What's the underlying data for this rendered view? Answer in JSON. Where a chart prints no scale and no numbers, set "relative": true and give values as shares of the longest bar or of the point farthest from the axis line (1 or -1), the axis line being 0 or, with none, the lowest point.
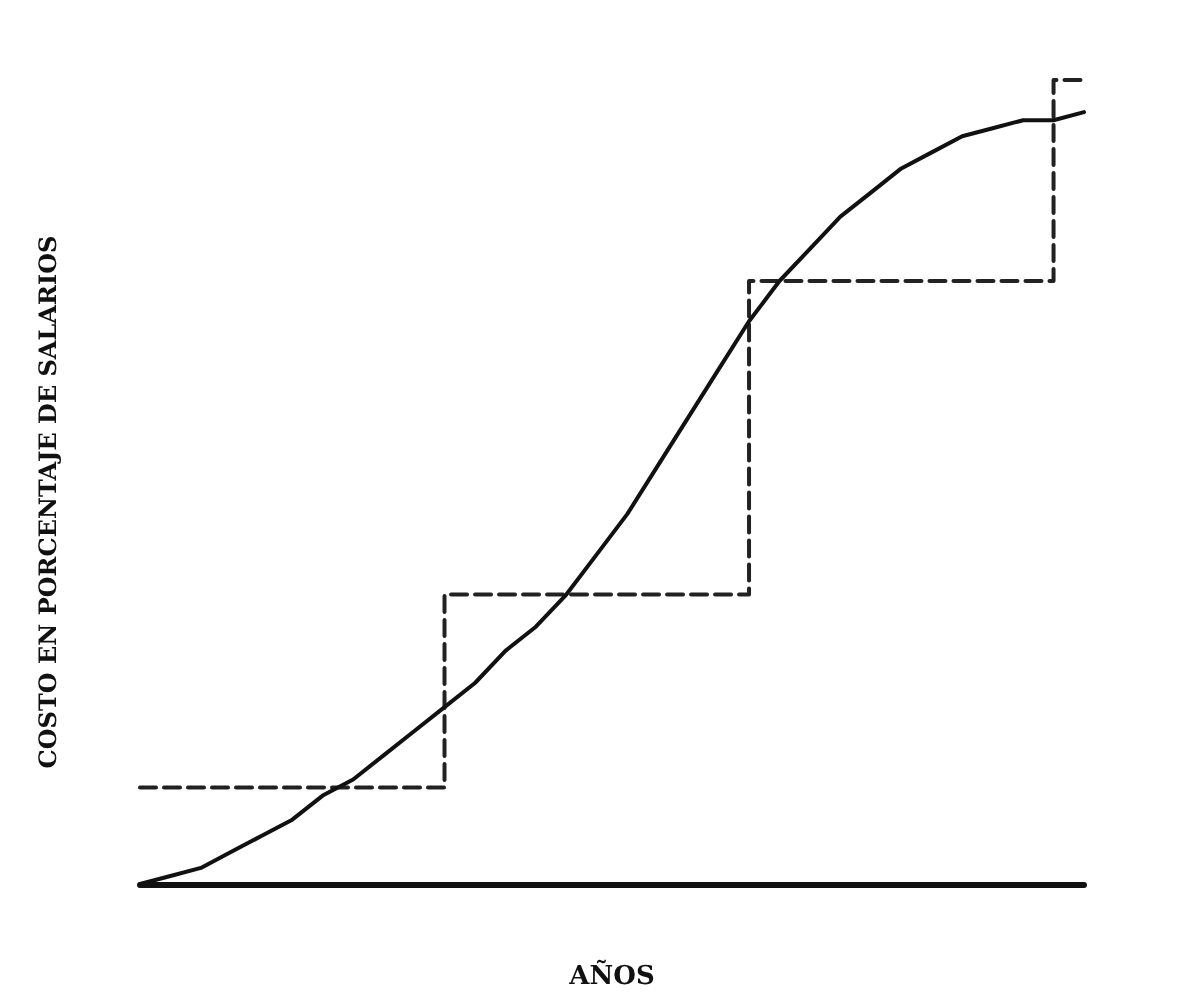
{
  "chart_data": {
    "type": "step",
    "relative": true,
    "xlabel": "AÑOS",
    "ylabel": "COSTO EN PORCENTAJE DE SALARIOS",
    "categories": [
      null,
      null,
      null,
      null,
      null,
      null,
      null,
      null,
      null,
      null,
      null,
      null,
      null,
      null,
      null,
      null,
      null,
      null,
      null,
      null,
      null,
      null,
      null,
      null,
      null,
      null,
      null,
      null,
      null,
      null,
      null,
      null
    ],
    "series": [
      {
        "color": "#222222",
        "line_style": "dashed",
        "values": [
          0.12,
          0.12,
          0.12,
          0.12,
          0.12,
          0.12,
          0.12,
          0.12,
          0.12,
          0.12,
          0.36,
          0.36,
          0.36,
          0.36,
          0.36,
          0.36,
          0.36,
          0.36,
          0.36,
          0.36,
          0.75,
          0.75,
          0.75,
          0.75,
          0.75,
          0.75,
          0.75,
          0.75,
          0.75,
          0.75,
          1,
          1
        ]
      },
      {
        "type": "line",
        "color": "#111111",
        "line_style": "solid",
        "values": [
          0,
          0.01,
          0.02,
          0.04,
          0.06,
          0.08,
          0.11,
          0.13,
          0.16,
          0.19,
          0.22,
          0.25,
          0.29,
          0.32,
          0.36,
          0.41,
          0.46,
          0.52,
          0.58,
          0.64,
          0.7,
          0.75,
          0.79,
          0.83,
          0.86,
          0.89,
          0.91,
          0.93,
          0.94,
          0.95,
          0.95,
          0.96
        ]
      }
    ],
    "marker": "none",
    "grid": false
  }
}
